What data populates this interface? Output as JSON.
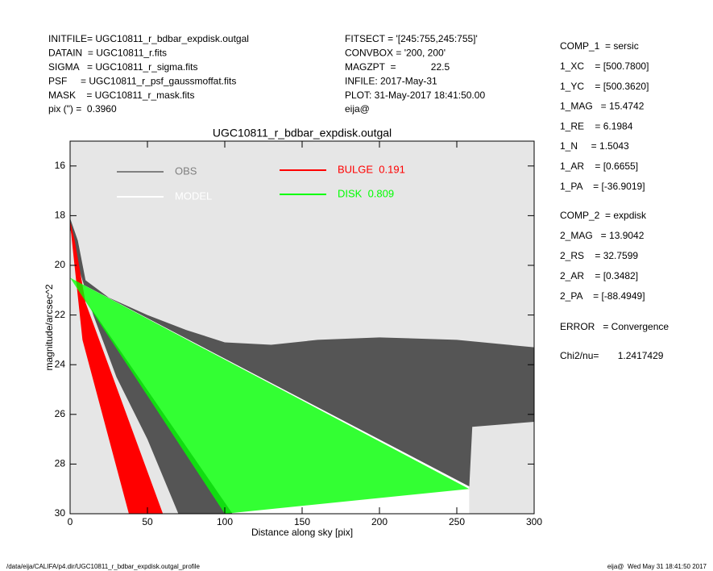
{
  "header": {
    "left": [
      "INITFILE= UGC10811_r_bdbar_expdisk.outgal",
      "DATAIN  = UGC10811_r.fits",
      "SIGMA   = UGC10811_r_sigma.fits",
      "PSF     = UGC10811_r_psf_gaussmoffat.fits",
      "MASK    = UGC10811_r_mask.fits",
      "pix (\") =  0.3960"
    ],
    "middle": [
      "FITSECT = '[245:755,245:755]'",
      "CONVBOX = '200, 200'",
      "MAGZPT  =             22.5",
      "INFILE: 2017-May-31",
      "PLOT: 31-May-2017 18:41:50.00",
      "eija@"
    ],
    "right": [
      "COMP_1  = sersic",
      "1_XC    = [500.7800]",
      "1_YC    = [500.3620]",
      "1_MAG   = 15.4742",
      "1_RE    = 6.1984",
      "1_N     = 1.5043",
      "1_AR    = [0.6655]",
      "1_PA    = [-36.9019]",
      "COMP_2  = expdisk",
      "2_MAG   = 13.9042",
      "2_RS    = 32.7599",
      "2_AR    = [0.3482]",
      "2_PA    = [-88.4949]",
      "ERROR   = Convergence",
      "Chi2/nu=       1.2417429"
    ]
  },
  "chart_data": {
    "type": "scatter",
    "title": "UGC10811_r_bdbar_expdisk.outgal",
    "x_label": "Distance along sky [pix]",
    "y_label": "magnitude/arcsec^2",
    "xlim": [
      0,
      300
    ],
    "ylim": [
      30,
      15
    ],
    "xticks": [
      0,
      50,
      100,
      150,
      200,
      250,
      300
    ],
    "yticks": [
      16,
      18,
      20,
      22,
      24,
      26,
      28,
      30
    ],
    "series": [
      {
        "name": "OBS",
        "color": "#555555",
        "legend_color": "#808080",
        "x": [
          0,
          5,
          10,
          25,
          50,
          75,
          100,
          130,
          160,
          200,
          250,
          300,
          300,
          260,
          258,
          250,
          120,
          70,
          50,
          30,
          15,
          5,
          0
        ],
        "values": [
          18.1,
          19,
          20.6,
          21.3,
          22,
          22.6,
          23.1,
          23.2,
          23,
          22.9,
          23,
          23.3,
          26.3,
          26.5,
          29,
          30,
          30,
          30,
          27,
          24.5,
          22,
          20,
          18.5
        ]
      },
      {
        "name": "MODEL",
        "color": "#ffffff",
        "x": [
          0,
          258,
          258,
          105
        ],
        "values": [
          20.5,
          28.9,
          30,
          30
        ]
      },
      {
        "name": "BULGE  0.191",
        "color": "#ff0000",
        "x": [
          0,
          3,
          10,
          60,
          38,
          8,
          2,
          0
        ],
        "values": [
          18.2,
          19,
          21.5,
          30,
          30,
          23,
          19.5,
          18.3
        ]
      },
      {
        "name": "DISK  0.809",
        "color": "#00ff00",
        "x": [
          0,
          258,
          100
        ],
        "values": [
          20.5,
          29,
          30
        ]
      }
    ]
  },
  "footer": {
    "left": "/data/eija/CALIFA/p4.dir/UGC10811_r_bdbar_expdisk.outgal_profile",
    "right": "eija@  Wed May 31 18:41:50 2017"
  }
}
